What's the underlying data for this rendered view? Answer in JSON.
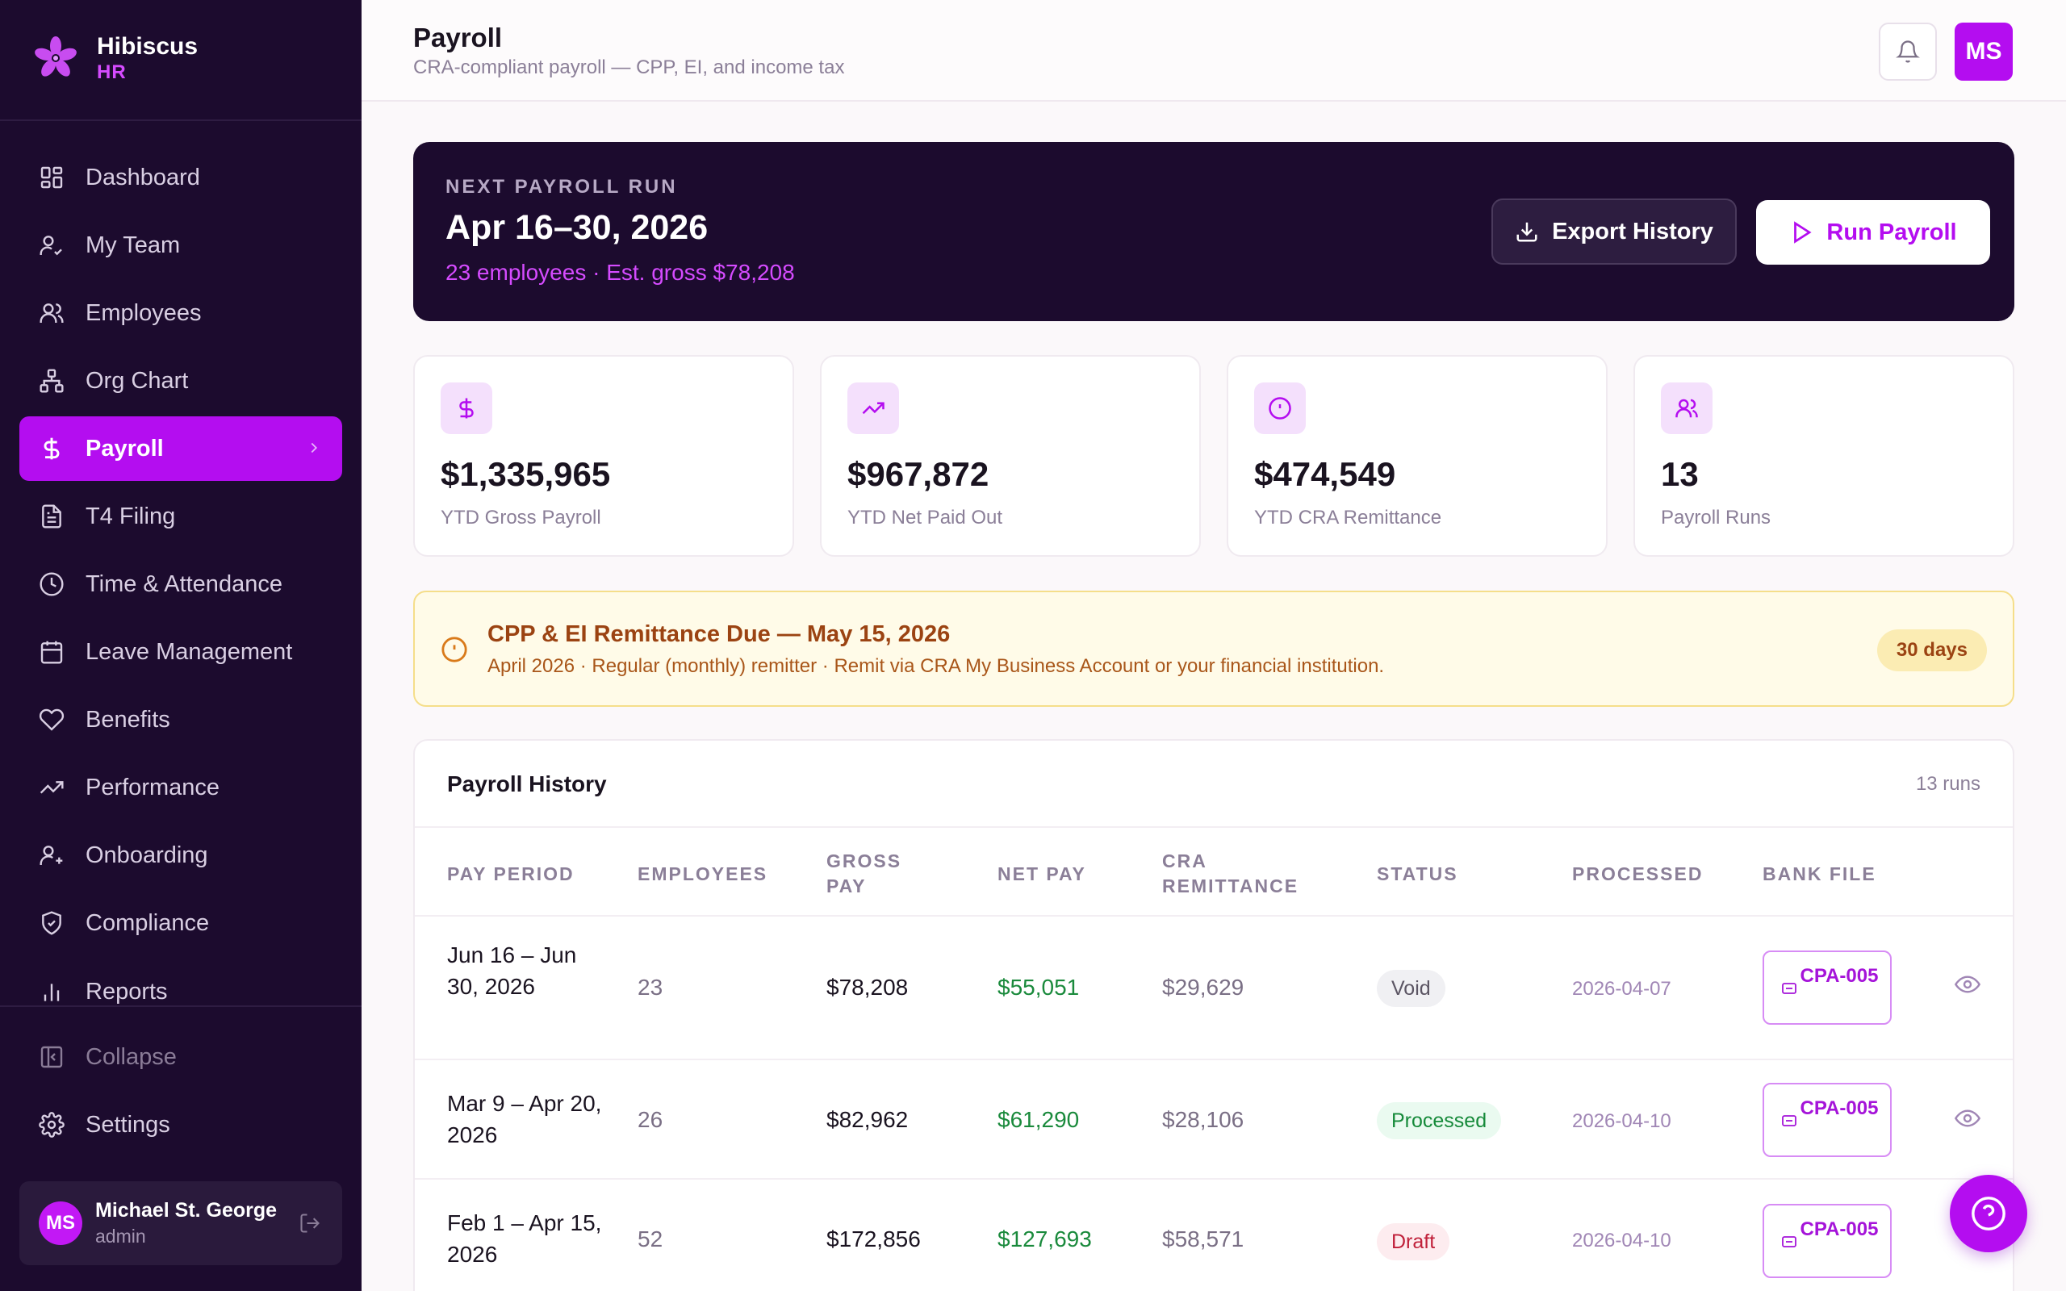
{
  "brand": {
    "name": "Hibiscus",
    "sub": "HR"
  },
  "nav": {
    "items": [
      {
        "label": "Dashboard",
        "icon": "grid-icon"
      },
      {
        "label": "My Team",
        "icon": "user-check-icon"
      },
      {
        "label": "Employees",
        "icon": "users-icon"
      },
      {
        "label": "Org Chart",
        "icon": "org-chart-icon"
      },
      {
        "label": "Payroll",
        "icon": "dollar-icon",
        "active": true
      },
      {
        "label": "T4 Filing",
        "icon": "document-icon"
      },
      {
        "label": "Time & Attendance",
        "icon": "clock-icon"
      },
      {
        "label": "Leave Management",
        "icon": "calendar-icon"
      },
      {
        "label": "Benefits",
        "icon": "heart-icon"
      },
      {
        "label": "Performance",
        "icon": "trend-up-icon"
      },
      {
        "label": "Onboarding",
        "icon": "user-plus-icon"
      },
      {
        "label": "Compliance",
        "icon": "shield-icon"
      },
      {
        "label": "Reports",
        "icon": "bar-chart-icon"
      }
    ],
    "collapse": "Collapse",
    "settings": "Settings"
  },
  "user": {
    "initials": "MS",
    "name": "Michael St. George",
    "role": "admin"
  },
  "header": {
    "title": "Payroll",
    "subtitle": "CRA-compliant payroll — CPP, EI, and income tax",
    "avatar": "MS"
  },
  "hero": {
    "label": "NEXT PAYROLL RUN",
    "title": "Apr 16–30, 2026",
    "subtitle": "23 employees · Est. gross $78,208",
    "export_label": "Export History",
    "run_label": "Run Payroll"
  },
  "stats": [
    {
      "value": "$1,335,965",
      "label": "YTD Gross Payroll",
      "icon": "dollar-icon"
    },
    {
      "value": "$967,872",
      "label": "YTD Net Paid Out",
      "icon": "trend-up-icon"
    },
    {
      "value": "$474,549",
      "label": "YTD CRA Remittance",
      "icon": "alert-circle-icon"
    },
    {
      "value": "13",
      "label": "Payroll Runs",
      "icon": "users-icon"
    }
  ],
  "alert": {
    "title": "CPP & EI Remittance Due — May 15, 2026",
    "subtitle": "April 2026 · Regular (monthly) remitter · Remit via CRA My Business Account or your financial institution.",
    "badge": "30 days"
  },
  "history": {
    "title": "Payroll History",
    "count": "13 runs",
    "columns": {
      "period": "PAY PERIOD",
      "employees": "EMPLOYEES",
      "gross": "GROSS PAY",
      "net": "NET PAY",
      "cra": "CRA REMITTANCE",
      "status": "STATUS",
      "processed": "PROCESSED",
      "bank": "BANK FILE"
    },
    "rows": [
      {
        "period": "Jun 16 – Jun 30, 2026",
        "employees": "23",
        "gross": "$78,208",
        "net": "$55,051",
        "cra": "$29,629",
        "status": "Void",
        "processed": "2026-04-07",
        "bank": "CPA-005"
      },
      {
        "period": "Mar 9 – Apr 20, 2026",
        "employees": "26",
        "gross": "$82,962",
        "net": "$61,290",
        "cra": "$28,106",
        "status": "Processed",
        "processed": "2026-04-10",
        "bank": "CPA-005"
      },
      {
        "period": "Feb 1 – Apr 15, 2026",
        "employees": "52",
        "gross": "$172,856",
        "net": "$127,693",
        "cra": "$58,571",
        "status": "Draft",
        "processed": "2026-04-10",
        "bank": "CPA-005"
      }
    ]
  }
}
